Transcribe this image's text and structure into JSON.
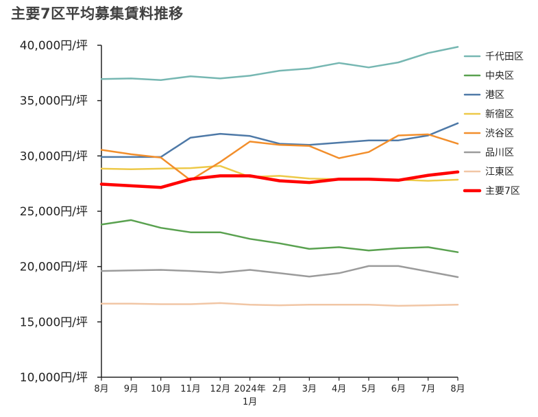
{
  "chart_data": {
    "type": "line",
    "title": "主要7区平均募集賃料推移",
    "xlabel": "",
    "ylabel": "",
    "ylim": [
      10000,
      40000
    ],
    "yticks": [
      "10,000円/坪",
      "15,000円/坪",
      "20,000円/坪",
      "25,000円/坪",
      "30,000円/坪",
      "35,000円/坪",
      "40,000円/坪"
    ],
    "categories": [
      "8月",
      "9月",
      "10月",
      "11月",
      "12月",
      "2024年 1月",
      "2月",
      "3月",
      "4月",
      "5月",
      "6月",
      "7月",
      "8月"
    ],
    "grid": false,
    "legend_position": "right",
    "series": [
      {
        "name": "千代田区",
        "color": "#76b7b2",
        "values": [
          36950,
          37000,
          36850,
          37200,
          37000,
          37250,
          37700,
          37900,
          38400,
          38000,
          38450,
          39300,
          39850
        ]
      },
      {
        "name": "中央区",
        "color": "#59a14f",
        "values": [
          23800,
          24200,
          23500,
          23100,
          23100,
          22500,
          22100,
          21600,
          21750,
          21450,
          21650,
          21750,
          21300
        ]
      },
      {
        "name": "港区",
        "color": "#4e79a7",
        "values": [
          29900,
          29900,
          29900,
          31650,
          32000,
          31800,
          31100,
          31000,
          31200,
          31400,
          31400,
          31850,
          32950
        ]
      },
      {
        "name": "新宿区",
        "color": "#edc948",
        "values": [
          28850,
          28800,
          28850,
          28900,
          29100,
          28100,
          28200,
          27950,
          27900,
          27900,
          27850,
          27750,
          27850
        ]
      },
      {
        "name": "渋谷区",
        "color": "#f28e2b",
        "values": [
          30550,
          30150,
          29850,
          27800,
          29450,
          31300,
          31000,
          30900,
          29800,
          30350,
          31850,
          31950,
          31100
        ]
      },
      {
        "name": "品川区",
        "color": "#9b9b9b",
        "values": [
          19600,
          19650,
          19700,
          19600,
          19450,
          19700,
          19400,
          19100,
          19400,
          20050,
          20050,
          19550,
          19050
        ]
      },
      {
        "name": "江東区",
        "color": "#f1c6a5",
        "values": [
          16650,
          16650,
          16600,
          16600,
          16700,
          16550,
          16500,
          16550,
          16550,
          16550,
          16450,
          16500,
          16550
        ]
      },
      {
        "name": "主要7区",
        "color": "#ff0000",
        "values": [
          27450,
          27300,
          27150,
          27900,
          28200,
          28200,
          27750,
          27600,
          27900,
          27900,
          27800,
          28250,
          28550
        ],
        "emphasis": true
      }
    ]
  }
}
